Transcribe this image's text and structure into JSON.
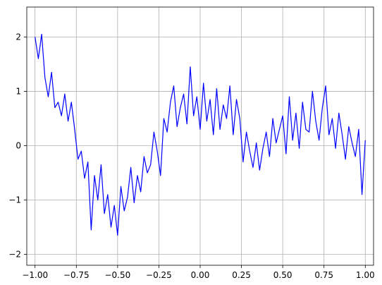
{
  "chart_data": {
    "type": "line",
    "title": "",
    "xlabel": "",
    "ylabel": "",
    "xlim": [
      -1.05,
      1.05
    ],
    "ylim": [
      -2.2,
      2.55
    ],
    "grid": true,
    "legend": "none",
    "series": [
      {
        "color": "#0000ff",
        "x": [
          -1.0,
          -0.98,
          -0.96,
          -0.94,
          -0.92,
          -0.9,
          -0.88,
          -0.86,
          -0.84,
          -0.82,
          -0.8,
          -0.78,
          -0.76,
          -0.74,
          -0.72,
          -0.7,
          -0.68,
          -0.66,
          -0.64,
          -0.62,
          -0.6,
          -0.58,
          -0.56,
          -0.54,
          -0.52,
          -0.5,
          -0.48,
          -0.46,
          -0.44,
          -0.42,
          -0.4,
          -0.38,
          -0.36,
          -0.34,
          -0.32,
          -0.3,
          -0.28,
          -0.26,
          -0.24,
          -0.22,
          -0.2,
          -0.18,
          -0.16,
          -0.14,
          -0.12,
          -0.1,
          -0.08,
          -0.06,
          -0.04,
          -0.02,
          0.0,
          0.02,
          0.04,
          0.06,
          0.08,
          0.1,
          0.12,
          0.14,
          0.16,
          0.18,
          0.2,
          0.22,
          0.24,
          0.26,
          0.28,
          0.3,
          0.32,
          0.34,
          0.36,
          0.38,
          0.4,
          0.42,
          0.44,
          0.46,
          0.48,
          0.5,
          0.52,
          0.54,
          0.56,
          0.58,
          0.6,
          0.62,
          0.64,
          0.66,
          0.68,
          0.7,
          0.72,
          0.74,
          0.76,
          0.78,
          0.8,
          0.82,
          0.84,
          0.86,
          0.88,
          0.9,
          0.92,
          0.94,
          0.96,
          0.98,
          1.0
        ],
        "values": [
          2.0,
          1.6,
          2.05,
          1.25,
          0.9,
          1.35,
          0.7,
          0.8,
          0.55,
          0.95,
          0.45,
          0.8,
          0.3,
          -0.25,
          -0.1,
          -0.6,
          -0.3,
          -1.55,
          -0.55,
          -1.0,
          -0.35,
          -1.25,
          -0.9,
          -1.5,
          -1.1,
          -1.65,
          -0.75,
          -1.2,
          -0.95,
          -0.4,
          -1.05,
          -0.55,
          -0.85,
          -0.2,
          -0.5,
          -0.35,
          0.25,
          -0.1,
          -0.55,
          0.5,
          0.25,
          0.8,
          1.1,
          0.35,
          0.7,
          0.95,
          0.4,
          1.45,
          0.55,
          0.9,
          0.3,
          1.15,
          0.45,
          0.85,
          0.2,
          1.05,
          0.3,
          0.75,
          0.5,
          1.1,
          0.2,
          0.85,
          0.5,
          -0.3,
          0.25,
          -0.1,
          -0.4,
          0.05,
          -0.45,
          -0.05,
          0.25,
          -0.2,
          0.5,
          0.05,
          0.3,
          0.55,
          -0.15,
          0.9,
          0.1,
          0.6,
          -0.05,
          0.8,
          0.3,
          0.25,
          1.0,
          0.45,
          0.1,
          0.7,
          1.1,
          0.2,
          0.5,
          -0.05,
          0.6,
          0.2,
          -0.25,
          0.35,
          0.05,
          -0.2,
          0.3,
          -0.9,
          0.1
        ]
      }
    ],
    "xticks": [
      -1.0,
      -0.75,
      -0.5,
      -0.25,
      0.0,
      0.25,
      0.5,
      0.75,
      1.0
    ],
    "xtick_labels": [
      "−1.00",
      "−0.75",
      "−0.50",
      "−0.25",
      "0.00",
      "0.25",
      "0.50",
      "0.75",
      "1.00"
    ],
    "yticks": [
      -2,
      -1,
      0,
      1,
      2
    ],
    "ytick_labels": [
      "−2",
      "−1",
      "0",
      "1",
      "2"
    ]
  }
}
